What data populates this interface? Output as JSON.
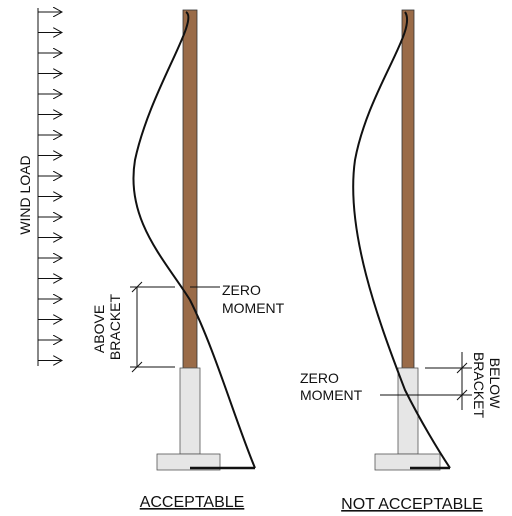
{
  "wind_load": "WIND LOAD",
  "acceptable": {
    "dimension_label": [
      "ABOVE",
      "BRACKET"
    ],
    "zero_moment": [
      "ZERO",
      "MOMENT"
    ],
    "caption": "ACCEPTABLE"
  },
  "not_acceptable": {
    "dimension_label": [
      "BELOW",
      "BRACKET"
    ],
    "zero_moment": [
      "ZERO",
      "MOMENT"
    ],
    "caption": "NOT ACCEPTABLE"
  }
}
